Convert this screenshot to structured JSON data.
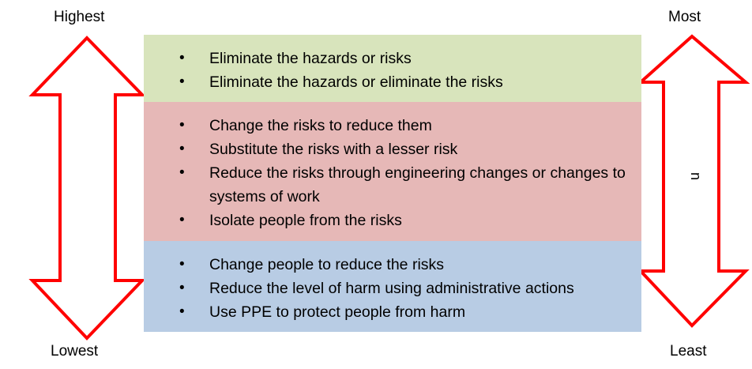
{
  "labels": {
    "left_top": "Highest",
    "left_bottom": "Lowest",
    "right_top": "Most",
    "right_bottom": "Least",
    "right_rotated": "n"
  },
  "colors": {
    "arrow_stroke": "#ff0000",
    "band_1": "#d8e4bc",
    "band_2": "#e6b8b7",
    "band_3": "#b8cce4"
  },
  "bands": [
    {
      "items": [
        "Eliminate the hazards or risks",
        "Eliminate the hazards or eliminate the risks"
      ]
    },
    {
      "items": [
        "Change the risks to reduce them",
        "Substitute the risks with a lesser risk",
        "Reduce the risks through engineering changes or changes to systems of work",
        "Isolate people from the risks"
      ]
    },
    {
      "items": [
        "Change people to reduce the risks",
        "Reduce the level of harm using administrative actions",
        "Use PPE to protect people from harm"
      ]
    }
  ]
}
